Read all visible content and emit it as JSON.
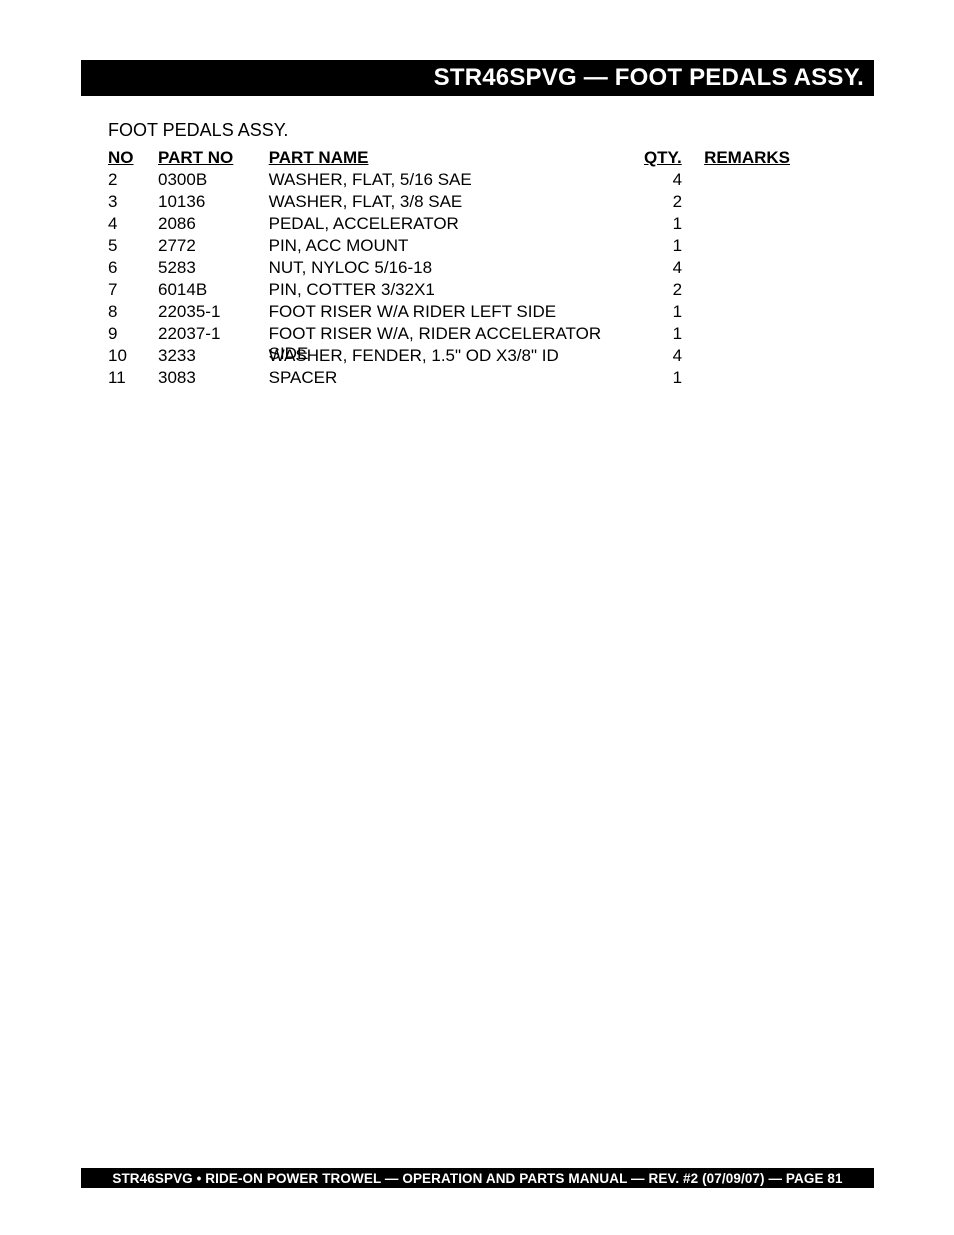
{
  "header": {
    "title": "STR46SPVG — FOOT PEDALS ASSY."
  },
  "subtitle": "FOOT PEDALS ASSY.",
  "table": {
    "columns": {
      "no": "NO",
      "part_no": "PART NO",
      "part_name": "PART NAME",
      "qty": "QTY.",
      "remarks": "REMARKS"
    },
    "rows": [
      {
        "no": "2",
        "part_no": "0300B",
        "part_name": "WASHER, FLAT, 5/16 SAE",
        "qty": "4",
        "remarks": ""
      },
      {
        "no": "3",
        "part_no": "10136",
        "part_name": "WASHER, FLAT, 3/8 SAE",
        "qty": "2",
        "remarks": ""
      },
      {
        "no": "4",
        "part_no": "2086",
        "part_name": "PEDAL, ACCELERATOR",
        "qty": "1",
        "remarks": ""
      },
      {
        "no": "5",
        "part_no": "2772",
        "part_name": "PIN, ACC MOUNT",
        "qty": "1",
        "remarks": ""
      },
      {
        "no": "6",
        "part_no": "5283",
        "part_name": "NUT, NYLOC 5/16-18",
        "qty": "4",
        "remarks": ""
      },
      {
        "no": "7",
        "part_no": "6014B",
        "part_name": "PIN, COTTER 3/32X1",
        "qty": "2",
        "remarks": ""
      },
      {
        "no": "8",
        "part_no": "22035-1",
        "part_name": "FOOT RISER W/A RIDER LEFT SIDE",
        "qty": "1",
        "remarks": ""
      },
      {
        "no": "9",
        "part_no": "22037-1",
        "part_name": "FOOT RISER W/A, RIDER ACCELERATOR SIDE",
        "qty": "1",
        "remarks": ""
      },
      {
        "no": "10",
        "part_no": "3233",
        "part_name": "WASHER, FENDER, 1.5\" OD X3/8\" ID",
        "qty": "4",
        "remarks": ""
      },
      {
        "no": "11",
        "part_no": "3083",
        "part_name": "SPACER",
        "qty": "1",
        "remarks": ""
      }
    ]
  },
  "footer": {
    "text": "STR46SPVG • RIDE-ON POWER TROWEL —  OPERATION AND PARTS MANUAL — REV. #2 (07/09/07) — PAGE 81"
  }
}
